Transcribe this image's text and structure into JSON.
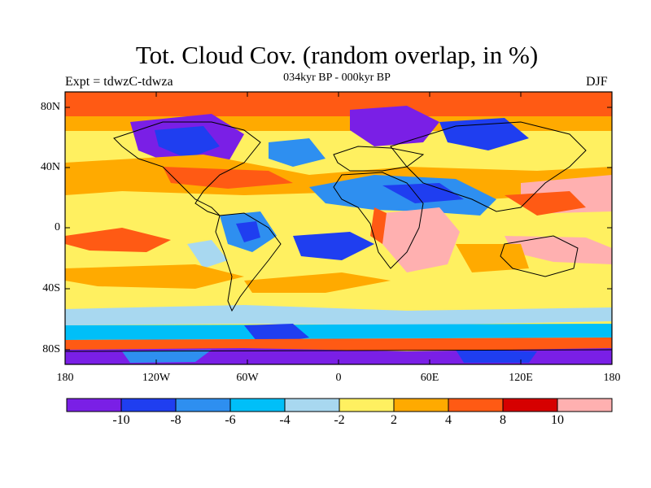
{
  "title": "Tot. Cloud Cov. (random overlap, in %)",
  "subtitle": "034kyr BP - 000kyr BP",
  "experiment": "Expt = tdwzC-tdwza",
  "season": "DJF",
  "map": {
    "projection": "cylindrical equidistant",
    "lon_range": [
      -180,
      180
    ],
    "lat_range": [
      -90,
      90
    ],
    "lat_ticks": [
      "80N",
      "40N",
      "0",
      "40S",
      "80S"
    ],
    "lon_ticks": [
      "180",
      "120W",
      "60W",
      "0",
      "60E",
      "120E",
      "180"
    ]
  },
  "colorbar": {
    "labels": [
      "-10",
      "-8",
      "-6",
      "-4",
      "-2",
      "2",
      "4",
      "8",
      "10"
    ],
    "colors": [
      "#7a1fe6",
      "#1f3ef0",
      "#2e8ff0",
      "#00bff8",
      "#a8d8f0",
      "#fff060",
      "#ffaa00",
      "#ff5a14",
      "#d60000",
      "#ffb0b0"
    ]
  }
}
